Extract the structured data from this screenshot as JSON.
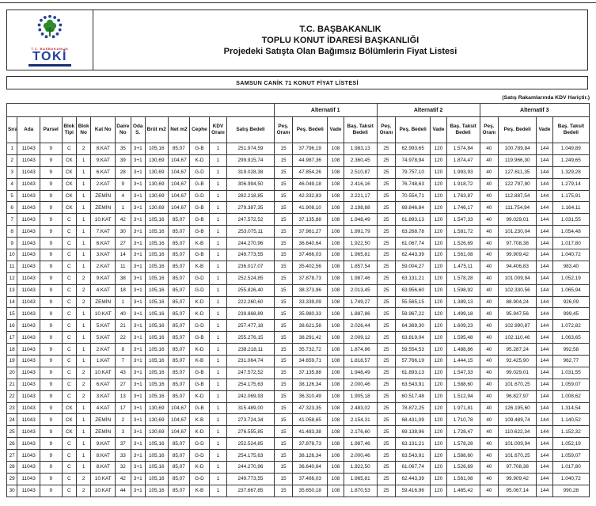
{
  "header": {
    "logo": {
      "org_small": "T.C. BAŞBAKANLIK",
      "brand": "TOKİ"
    },
    "title_lines": [
      "T.C. BAŞBAKANLIK",
      "TOPLU KONUT İDARESİ BAŞKANLIĞI",
      "Projedeki Satışta Olan Bağımsız Bölümlerin Fiyat Listesi"
    ]
  },
  "list_title": "SAMSUN CANİK 71 KONUT FİYAT LİSTESİ",
  "note": "(Satış Rakamlarında KDV Hariçtir.)",
  "colors": {
    "border": "#3a3a3a",
    "logo_blue": "#21409a",
    "logo_green": "#2e8b2e",
    "logo_red": "#c42127"
  },
  "table": {
    "group_headers": [
      "Alternatif 1",
      "Alternatif 2",
      "Alternatif 3"
    ],
    "columns": [
      "Sıra",
      "Ada",
      "Parsel",
      "Blok Tipi",
      "Blok No",
      "Kat No",
      "Daire No",
      "Oda S.",
      "Brüt m2",
      "Net m2",
      "Cephe",
      "KDV Oranı",
      "Satış Bedeli",
      "Peş. Oranı",
      "Peş. Bedeli",
      "Vade",
      "Baş. Taksit Bedeli",
      "Peş. Oranı",
      "Peş. Bedeli",
      "Vade",
      "Baş. Taksit Bedeli",
      "Peş. Oranı",
      "Peş. Bedeli",
      "Vade",
      "Baş. Taksit Bedeli"
    ],
    "rows": [
      [
        "1",
        "11043",
        "9",
        "C",
        "2",
        "8.KAT",
        "35",
        "3+1",
        "105,16",
        "85,07",
        "G-B",
        "1",
        "251.974,59",
        "15",
        "37.796,19",
        "108",
        "1.983,13",
        "25",
        "62.993,65",
        "120",
        "1.574,84",
        "40",
        "100.789,84",
        "144",
        "1.049,89"
      ],
      [
        "2",
        "11043",
        "9",
        "CK",
        "1",
        "9.KAT",
        "39",
        "3+1",
        "130,69",
        "104,67",
        "K-D",
        "1",
        "299.915,74",
        "15",
        "44.987,36",
        "108",
        "2.360,45",
        "25",
        "74.978,94",
        "120",
        "1.874,47",
        "40",
        "119.966,30",
        "144",
        "1.249,65"
      ],
      [
        "3",
        "11043",
        "9",
        "CK",
        "1",
        "6.KAT",
        "28",
        "3+1",
        "130,69",
        "104,67",
        "G-D",
        "1",
        "319.028,38",
        "15",
        "47.854,26",
        "108",
        "2.510,87",
        "25",
        "79.757,10",
        "120",
        "1.993,93",
        "40",
        "127.611,35",
        "144",
        "1.329,28"
      ],
      [
        "4",
        "11043",
        "9",
        "CK",
        "1",
        "2.KAT",
        "9",
        "3+1",
        "130,69",
        "104,67",
        "G-B",
        "1",
        "306.994,50",
        "15",
        "46.049,18",
        "108",
        "2.416,16",
        "25",
        "76.748,63",
        "120",
        "1.918,72",
        "40",
        "122.797,80",
        "144",
        "1.279,14"
      ],
      [
        "5",
        "11043",
        "9",
        "CK",
        "1",
        "ZEMİN",
        "4",
        "3+1",
        "130,69",
        "104,67",
        "G-D",
        "1",
        "282.218,85",
        "15",
        "42.332,83",
        "108",
        "2.221,17",
        "25",
        "70.554,71",
        "120",
        "1.763,87",
        "40",
        "112.887,54",
        "144",
        "1.175,91"
      ],
      [
        "6",
        "11043",
        "9",
        "CK",
        "1",
        "ZEMİN",
        "1",
        "3+1",
        "130,69",
        "104,67",
        "G-B",
        "1",
        "279.387,35",
        "15",
        "41.908,10",
        "108",
        "2.198,88",
        "25",
        "69.846,84",
        "120",
        "1.746,17",
        "40",
        "111.754,94",
        "144",
        "1.164,11"
      ],
      [
        "7",
        "11043",
        "9",
        "C",
        "1",
        "10.KAT",
        "42",
        "3+1",
        "105,16",
        "85,07",
        "G-B",
        "1",
        "247.572,52",
        "15",
        "37.135,88",
        "108",
        "1.948,49",
        "25",
        "61.893,13",
        "120",
        "1.547,33",
        "40",
        "99.029,01",
        "144",
        "1.031,55"
      ],
      [
        "8",
        "11043",
        "9",
        "C",
        "1",
        "7.KAT",
        "30",
        "3+1",
        "105,16",
        "85,07",
        "G-B",
        "1",
        "253.075,11",
        "15",
        "37.961,27",
        "108",
        "1.991,79",
        "25",
        "63.268,78",
        "120",
        "1.581,72",
        "40",
        "101.230,04",
        "144",
        "1.054,48"
      ],
      [
        "9",
        "11043",
        "9",
        "C",
        "1",
        "6.KAT",
        "27",
        "3+1",
        "105,16",
        "85,07",
        "K-B",
        "1",
        "244.270,96",
        "15",
        "36.640,64",
        "108",
        "1.922,50",
        "25",
        "61.067,74",
        "120",
        "1.526,69",
        "40",
        "97.708,38",
        "144",
        "1.017,80"
      ],
      [
        "10",
        "11043",
        "9",
        "C",
        "1",
        "3.KAT",
        "14",
        "3+1",
        "105,16",
        "85,07",
        "G-B",
        "1",
        "249.773,55",
        "15",
        "37.466,03",
        "108",
        "1.965,81",
        "25",
        "62.443,39",
        "120",
        "1.561,08",
        "40",
        "99.909,42",
        "144",
        "1.040,72"
      ],
      [
        "11",
        "11043",
        "9",
        "C",
        "1",
        "2.KAT",
        "11",
        "3+1",
        "105,16",
        "85,07",
        "K-B",
        "1",
        "236.017,07",
        "15",
        "35.402,56",
        "108",
        "1.857,54",
        "25",
        "59.004,27",
        "120",
        "1.475,11",
        "40",
        "94.406,83",
        "144",
        "983,40"
      ],
      [
        "12",
        "11043",
        "9",
        "C",
        "2",
        "9.KAT",
        "38",
        "3+1",
        "105,16",
        "85,07",
        "G-D",
        "1",
        "252.524,85",
        "15",
        "37.878,73",
        "108",
        "1.987,46",
        "25",
        "63.131,21",
        "120",
        "1.578,28",
        "40",
        "101.009,94",
        "144",
        "1.052,19"
      ],
      [
        "13",
        "11043",
        "9",
        "C",
        "2",
        "4.KAT",
        "18",
        "3+1",
        "105,16",
        "85,07",
        "G-D",
        "1",
        "255.826,40",
        "15",
        "38.373,96",
        "108",
        "2.013,45",
        "25",
        "63.956,60",
        "120",
        "1.598,92",
        "40",
        "102.330,56",
        "144",
        "1.065,94"
      ],
      [
        "14",
        "11043",
        "9",
        "C",
        "2",
        "ZEMİN",
        "1",
        "3+1",
        "105,16",
        "85,07",
        "K-D",
        "1",
        "222.260,60",
        "15",
        "33.339,09",
        "108",
        "1.749,27",
        "25",
        "55.565,15",
        "120",
        "1.389,13",
        "40",
        "88.904,24",
        "144",
        "926,09"
      ],
      [
        "15",
        "11043",
        "9",
        "C",
        "1",
        "10.KAT",
        "40",
        "3+1",
        "105,16",
        "85,07",
        "K-D",
        "1",
        "239.868,89",
        "15",
        "35.980,33",
        "108",
        "1.887,86",
        "25",
        "59.967,22",
        "120",
        "1.499,18",
        "40",
        "95.947,56",
        "144",
        "999,45"
      ],
      [
        "16",
        "11043",
        "9",
        "C",
        "1",
        "5.KAT",
        "21",
        "3+1",
        "105,16",
        "85,07",
        "G-D",
        "1",
        "257.477,18",
        "15",
        "38.621,58",
        "108",
        "2.026,44",
        "25",
        "64.369,30",
        "120",
        "1.609,23",
        "40",
        "102.990,87",
        "144",
        "1.072,82"
      ],
      [
        "17",
        "11043",
        "9",
        "C",
        "1",
        "5.KAT",
        "22",
        "3+1",
        "105,16",
        "85,07",
        "G-B",
        "1",
        "255.276,15",
        "15",
        "38.291,42",
        "108",
        "2.009,12",
        "25",
        "63.819,04",
        "120",
        "1.595,48",
        "40",
        "102.110,46",
        "144",
        "1.063,65"
      ],
      [
        "18",
        "11043",
        "9",
        "C",
        "1",
        "2.KAT",
        "8",
        "3+1",
        "105,16",
        "85,07",
        "K-D",
        "1",
        "238.218,11",
        "15",
        "35.732,72",
        "108",
        "1.874,86",
        "25",
        "59.554,53",
        "120",
        "1.488,86",
        "40",
        "95.287,24",
        "144",
        "992,58"
      ],
      [
        "19",
        "11043",
        "9",
        "C",
        "1",
        "1.KAT",
        "7",
        "3+1",
        "105,16",
        "85,07",
        "K-B",
        "1",
        "231.064,74",
        "15",
        "34.659,71",
        "108",
        "1.818,57",
        "25",
        "57.766,19",
        "120",
        "1.444,15",
        "40",
        "92.425,90",
        "144",
        "962,77"
      ],
      [
        "20",
        "11043",
        "9",
        "C",
        "2",
        "10.KAT",
        "43",
        "3+1",
        "105,16",
        "85,07",
        "G-B",
        "1",
        "247.572,52",
        "15",
        "37.135,88",
        "108",
        "1.948,49",
        "25",
        "61.893,13",
        "120",
        "1.547,33",
        "40",
        "99.029,01",
        "144",
        "1.031,55"
      ],
      [
        "21",
        "11043",
        "9",
        "C",
        "2",
        "6.KAT",
        "27",
        "3+1",
        "105,16",
        "85,07",
        "G-B",
        "1",
        "254.175,63",
        "15",
        "38.126,34",
        "108",
        "2.000,46",
        "25",
        "63.543,91",
        "120",
        "1.588,60",
        "40",
        "101.670,25",
        "144",
        "1.059,07"
      ],
      [
        "22",
        "11043",
        "9",
        "C",
        "2",
        "3.KAT",
        "13",
        "3+1",
        "105,16",
        "85,07",
        "K-D",
        "1",
        "242.069,93",
        "15",
        "36.310,49",
        "108",
        "1.905,18",
        "25",
        "60.517,48",
        "120",
        "1.512,94",
        "40",
        "96.827,97",
        "144",
        "1.008,62"
      ],
      [
        "23",
        "11043",
        "9",
        "CK",
        "1",
        "4.KAT",
        "17",
        "3+1",
        "130,69",
        "104,67",
        "G-B",
        "1",
        "315.489,00",
        "15",
        "47.323,35",
        "108",
        "2.483,02",
        "25",
        "78.872,25",
        "120",
        "1.971,81",
        "40",
        "126.195,60",
        "144",
        "1.314,54"
      ],
      [
        "24",
        "11043",
        "9",
        "CK",
        "1",
        "ZEMİN",
        "2",
        "3+1",
        "130,69",
        "104,67",
        "K-B",
        "1",
        "273.724,34",
        "15",
        "41.058,65",
        "108",
        "2.154,31",
        "25",
        "68.431,09",
        "120",
        "1.710,78",
        "40",
        "109.489,74",
        "144",
        "1.140,52"
      ],
      [
        "25",
        "11043",
        "9",
        "CK",
        "1",
        "ZEMİN",
        "3",
        "3+1",
        "130,69",
        "104,67",
        "K-D",
        "1",
        "276.555,85",
        "15",
        "41.483,38",
        "108",
        "2.176,60",
        "25",
        "69.138,96",
        "120",
        "1.728,47",
        "40",
        "110.622,34",
        "144",
        "1.152,32"
      ],
      [
        "26",
        "11043",
        "9",
        "C",
        "1",
        "9.KAT",
        "37",
        "3+1",
        "105,16",
        "85,07",
        "G-D",
        "1",
        "252.524,85",
        "15",
        "37.878,73",
        "108",
        "1.987,46",
        "25",
        "63.131,21",
        "120",
        "1.578,28",
        "40",
        "101.009,94",
        "144",
        "1.052,19"
      ],
      [
        "27",
        "11043",
        "9",
        "C",
        "1",
        "8.KAT",
        "33",
        "3+1",
        "105,16",
        "85,07",
        "G-D",
        "1",
        "254.175,63",
        "15",
        "38.126,34",
        "108",
        "2.000,46",
        "25",
        "63.543,91",
        "120",
        "1.588,60",
        "40",
        "101.670,25",
        "144",
        "1.059,07"
      ],
      [
        "28",
        "11043",
        "9",
        "C",
        "1",
        "8.KAT",
        "32",
        "3+1",
        "105,16",
        "85,07",
        "K-D",
        "1",
        "244.270,96",
        "15",
        "36.640,64",
        "108",
        "1.922,50",
        "25",
        "61.067,74",
        "120",
        "1.526,69",
        "40",
        "97.708,38",
        "144",
        "1.017,80"
      ],
      [
        "29",
        "11043",
        "9",
        "C",
        "2",
        "10.KAT",
        "42",
        "3+1",
        "105,16",
        "85,07",
        "G-D",
        "1",
        "249.773,55",
        "15",
        "37.466,03",
        "108",
        "1.965,81",
        "25",
        "62.443,39",
        "120",
        "1.561,08",
        "40",
        "99.909,42",
        "144",
        "1.040,72"
      ],
      [
        "30",
        "11043",
        "9",
        "C",
        "2",
        "10.KAT",
        "44",
        "3+1",
        "105,16",
        "85,07",
        "K-B",
        "1",
        "237.667,85",
        "15",
        "35.650,18",
        "108",
        "1.870,53",
        "25",
        "59.416,96",
        "120",
        "1.485,42",
        "40",
        "95.067,14",
        "144",
        "990,28"
      ]
    ]
  }
}
